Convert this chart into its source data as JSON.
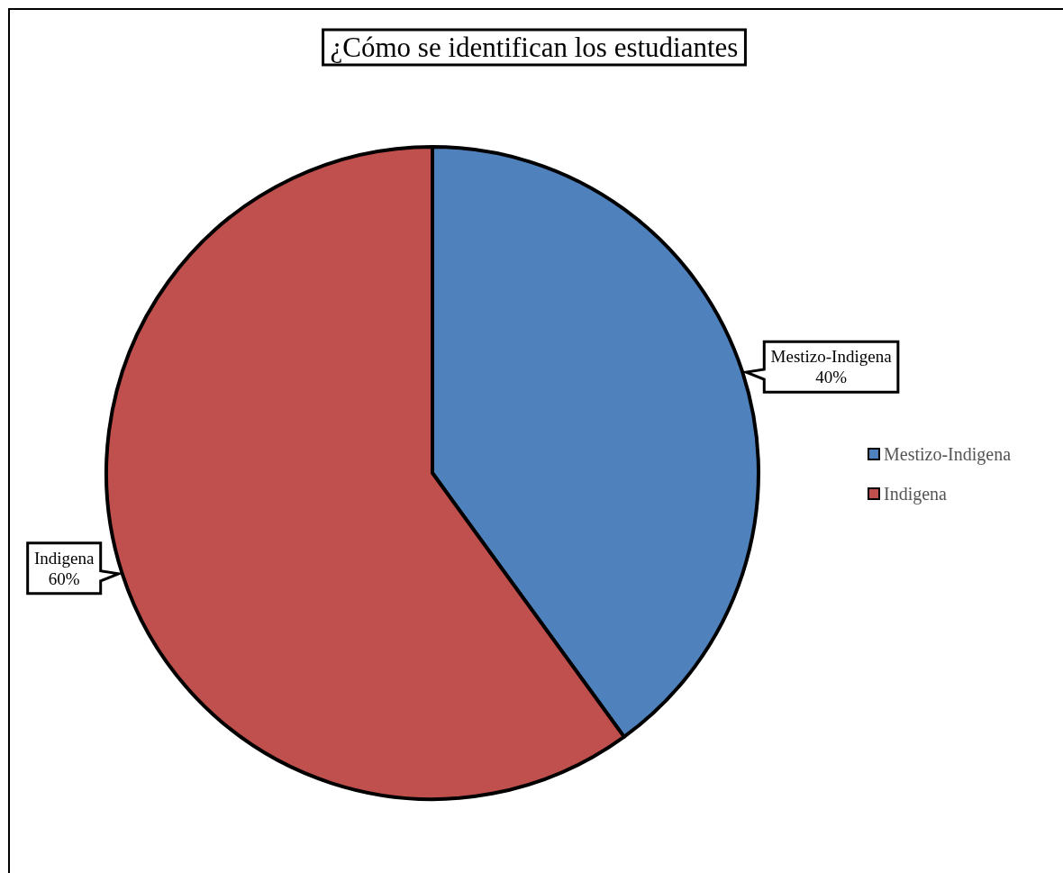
{
  "chart_data": {
    "type": "pie",
    "title": "¿Cómo se identifican los estudiantes",
    "categories": [
      "Mestizo-Indigena",
      "Indigena"
    ],
    "values": [
      40,
      60
    ],
    "colors": [
      "#4f81bd",
      "#c0504d"
    ],
    "value_labels": [
      "40%",
      "60%"
    ],
    "legend": "right"
  }
}
